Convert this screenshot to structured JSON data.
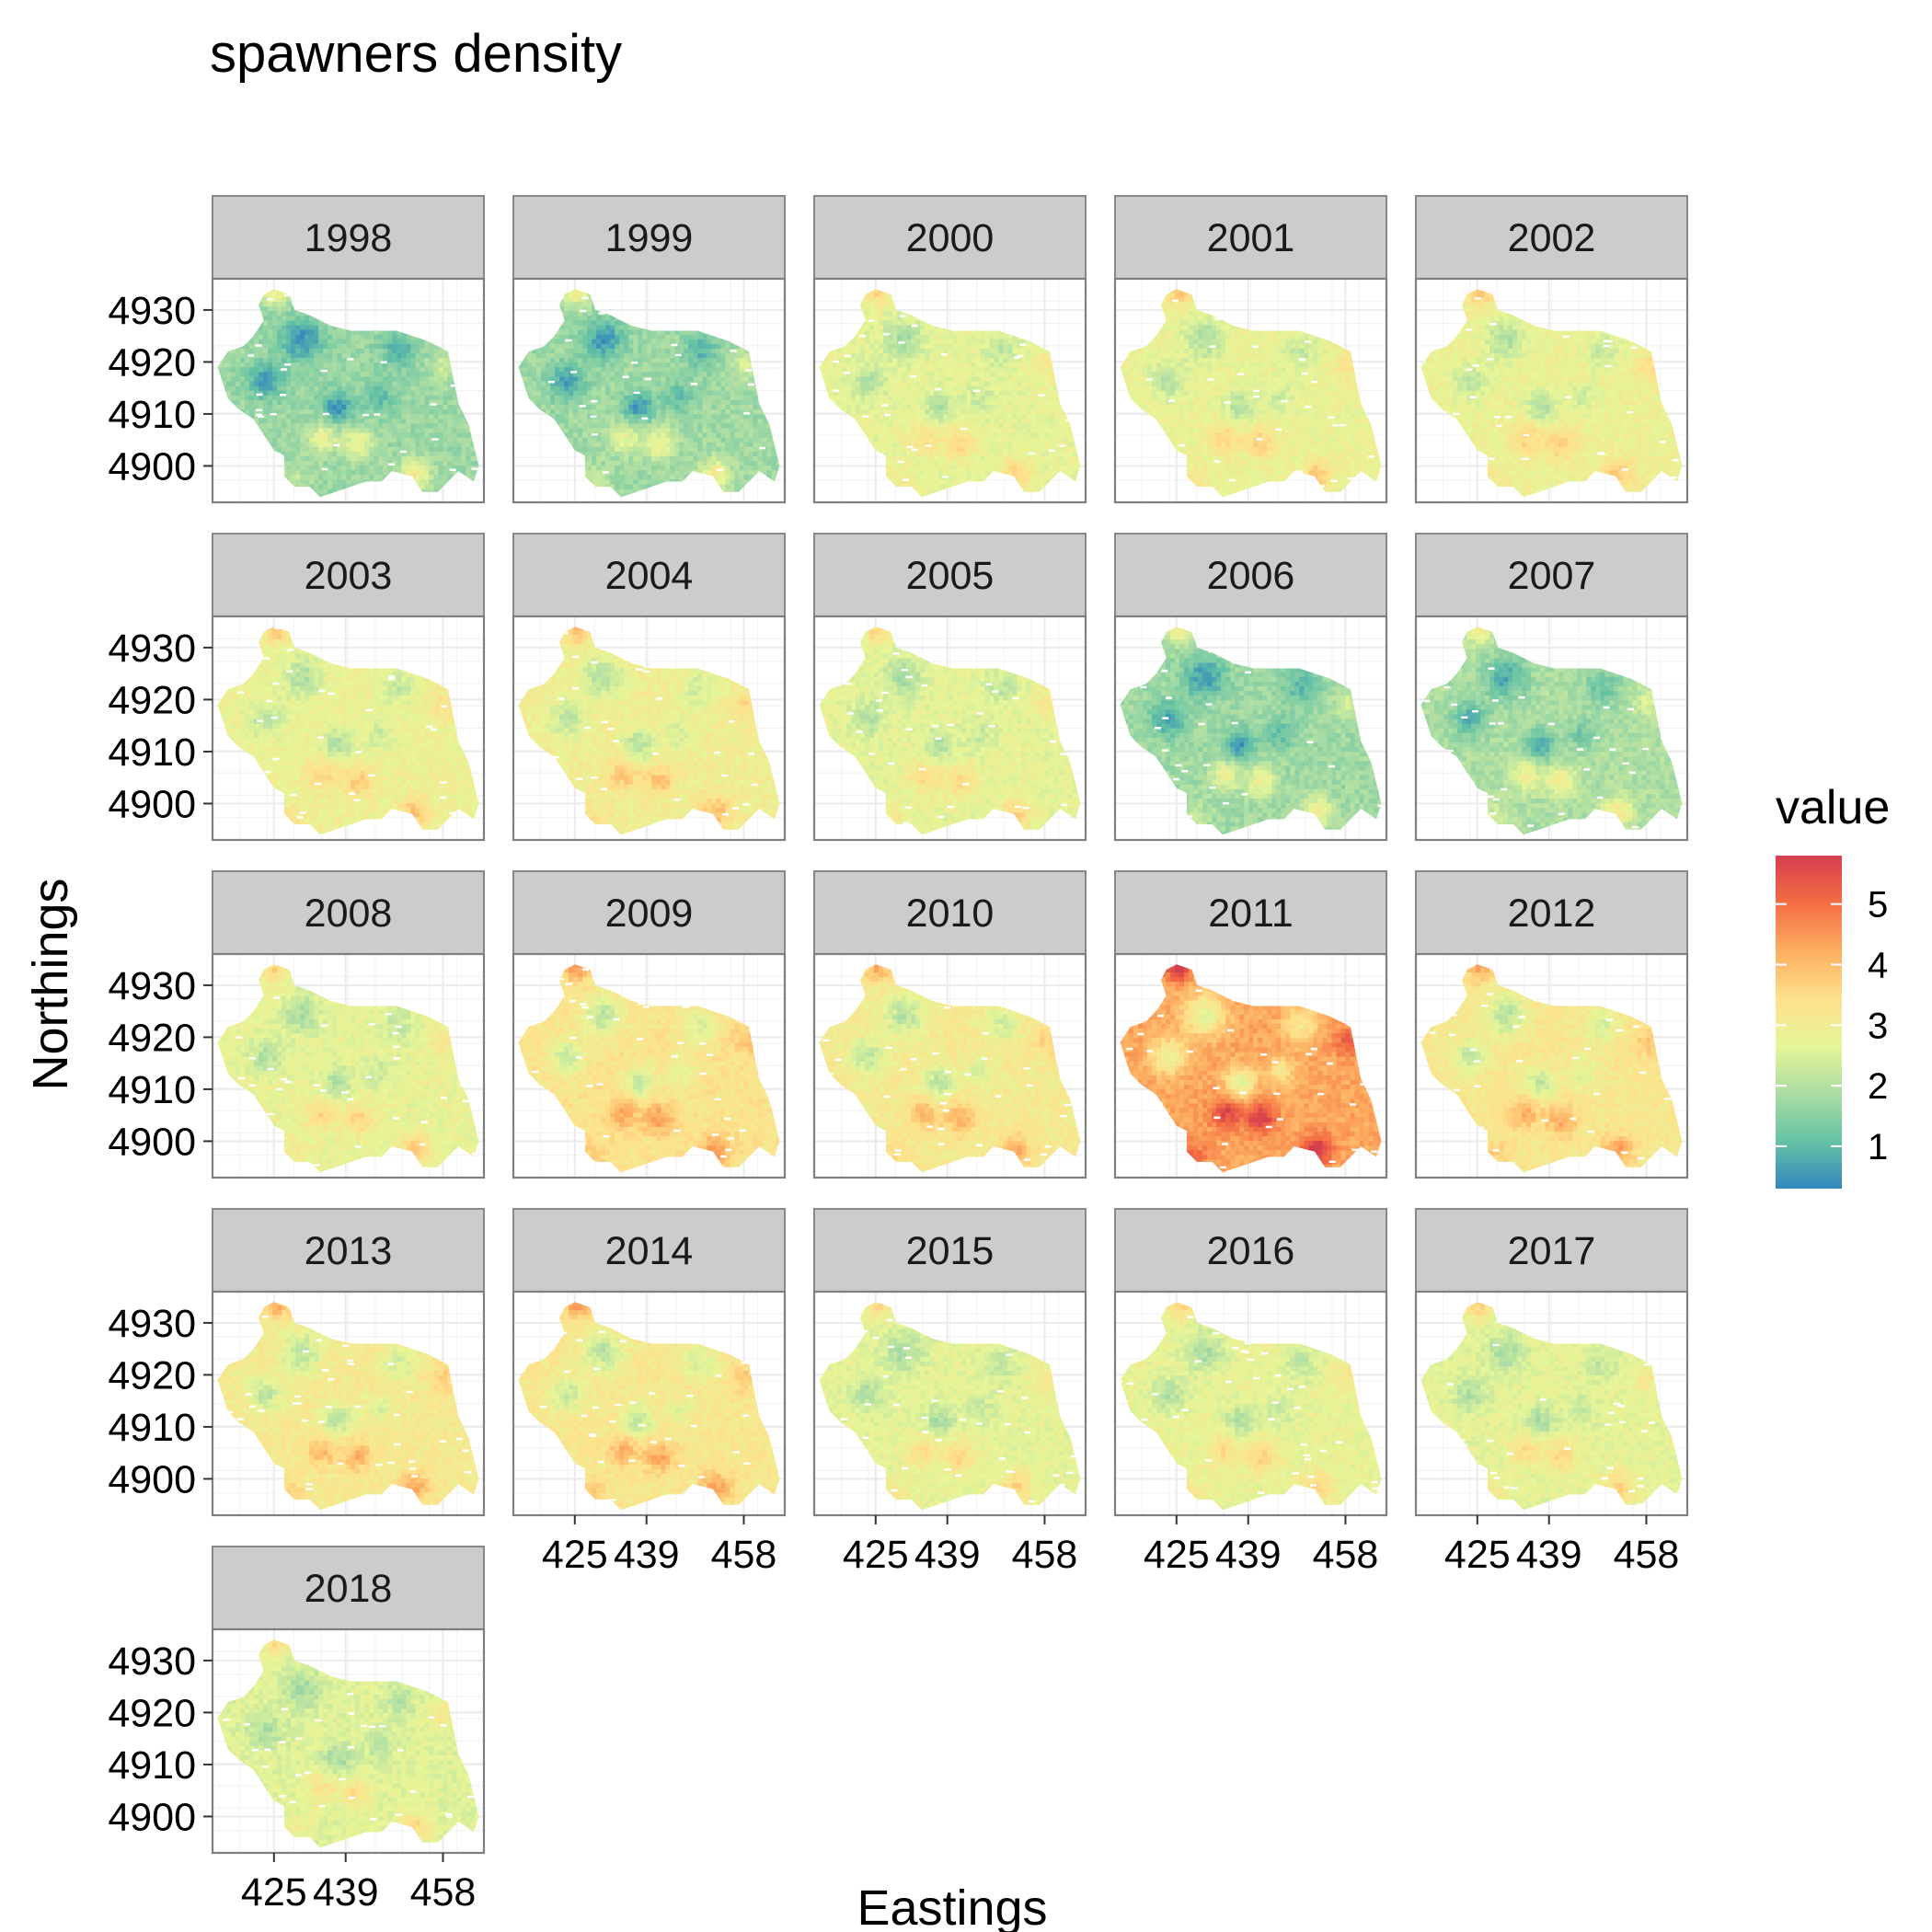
{
  "chart_data": {
    "type": "heatmap",
    "title": "spawners density",
    "xlabel": "Eastings",
    "ylabel": "Northings",
    "x_ticks": [
      425,
      439,
      458
    ],
    "y_ticks": [
      4900,
      4910,
      4920,
      4930
    ],
    "xlim": [
      413,
      466
    ],
    "ylim": [
      4893,
      4936
    ],
    "legend": {
      "title": "value",
      "ticks": [
        1,
        2,
        3,
        4,
        5
      ],
      "range": [
        0.3,
        5.8
      ],
      "placement": "right",
      "palette": [
        "#3288bd",
        "#66c2a5",
        "#abdda4",
        "#e6f598",
        "#fee08b",
        "#fdae61",
        "#f46d43",
        "#d53e4f"
      ]
    },
    "grid": true,
    "facet_layout": {
      "columns": 5,
      "rows": 5
    },
    "panels": [
      {
        "year": "1998",
        "mean_value": 1.7
      },
      {
        "year": "1999",
        "mean_value": 1.75
      },
      {
        "year": "2000",
        "mean_value": 2.7
      },
      {
        "year": "2001",
        "mean_value": 2.8
      },
      {
        "year": "2002",
        "mean_value": 2.85
      },
      {
        "year": "2003",
        "mean_value": 2.85
      },
      {
        "year": "2004",
        "mean_value": 2.95
      },
      {
        "year": "2005",
        "mean_value": 2.7
      },
      {
        "year": "2006",
        "mean_value": 1.75
      },
      {
        "year": "2007",
        "mean_value": 1.9
      },
      {
        "year": "2008",
        "mean_value": 2.75
      },
      {
        "year": "2009",
        "mean_value": 3.3
      },
      {
        "year": "2010",
        "mean_value": 3.1
      },
      {
        "year": "2011",
        "mean_value": 4.3
      },
      {
        "year": "2012",
        "mean_value": 3.2
      },
      {
        "year": "2013",
        "mean_value": 3.1
      },
      {
        "year": "2014",
        "mean_value": 3.2
      },
      {
        "year": "2015",
        "mean_value": 2.7
      },
      {
        "year": "2016",
        "mean_value": 2.75
      },
      {
        "year": "2017",
        "mean_value": 2.7
      },
      {
        "year": "2018",
        "mean_value": 2.6
      }
    ]
  }
}
